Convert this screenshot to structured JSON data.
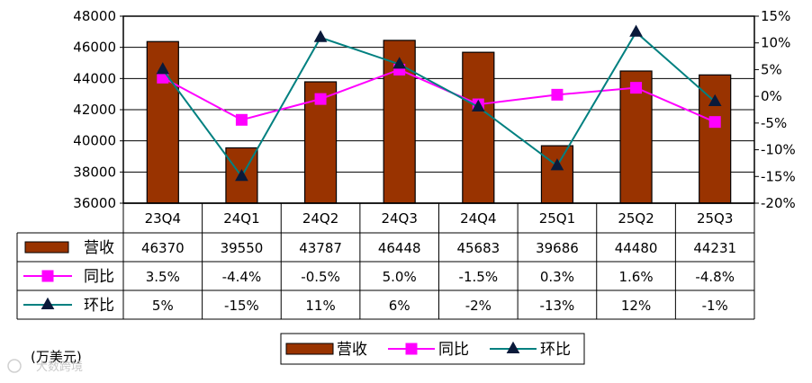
{
  "chart_data": {
    "type": "bar",
    "categories": [
      "23Q4",
      "24Q1",
      "24Q2",
      "24Q3",
      "24Q4",
      "25Q1",
      "25Q2",
      "25Q3"
    ],
    "series": [
      {
        "name": "营收",
        "type": "bar",
        "axis": "left",
        "color": "#993300",
        "values": [
          46370,
          39550,
          43787,
          46448,
          45683,
          39686,
          44480,
          44231
        ],
        "table_labels": [
          "46370",
          "39550",
          "43787",
          "46448",
          "45683",
          "39686",
          "44480",
          "44231"
        ]
      },
      {
        "name": "同比",
        "type": "line",
        "axis": "right",
        "color": "#ff00ff",
        "marker": "square",
        "values": [
          3.5,
          -4.4,
          -0.5,
          5.0,
          -1.5,
          0.3,
          1.6,
          -4.8
        ],
        "table_labels": [
          "3.5%",
          "-4.4%",
          "-0.5%",
          "5.0%",
          "-1.5%",
          "0.3%",
          "1.6%",
          "-4.8%"
        ]
      },
      {
        "name": "环比",
        "type": "line",
        "axis": "right",
        "color": "#008080",
        "marker": "triangle",
        "values": [
          5,
          -15,
          11,
          6,
          -2,
          -13,
          12,
          -1
        ],
        "table_labels": [
          "5%",
          "-15%",
          "11%",
          "6%",
          "-2%",
          "-13%",
          "12%",
          "-1%"
        ]
      }
    ],
    "y_left": {
      "ylim": [
        36000,
        48000
      ],
      "ticks": [
        "48000",
        "46000",
        "44000",
        "42000",
        "40000",
        "38000",
        "36000"
      ]
    },
    "y_right": {
      "ylim": [
        -20,
        15
      ],
      "ticks": [
        "15%",
        "10%",
        "5%",
        "0%",
        "-5%",
        "-10%",
        "-15%",
        "-20%"
      ]
    },
    "unit_label": "(万美元)",
    "grid": true,
    "legend": "bottom-center",
    "data_table": true,
    "watermark": "大数跨境"
  }
}
